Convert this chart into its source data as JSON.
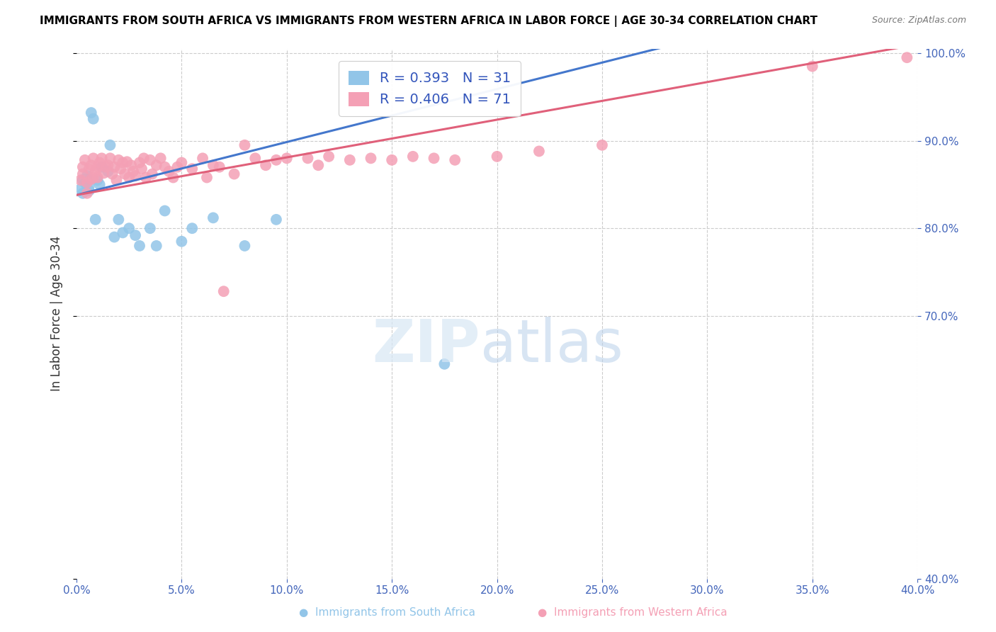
{
  "title": "IMMIGRANTS FROM SOUTH AFRICA VS IMMIGRANTS FROM WESTERN AFRICA IN LABOR FORCE | AGE 30-34 CORRELATION CHART",
  "source": "Source: ZipAtlas.com",
  "ylabel": "In Labor Force | Age 30-34",
  "xlim": [
    0.0,
    0.4
  ],
  "ylim": [
    0.4,
    1.005
  ],
  "xticks": [
    0.0,
    0.05,
    0.1,
    0.15,
    0.2,
    0.25,
    0.3,
    0.35,
    0.4
  ],
  "yticks_right": [
    0.4,
    0.7,
    0.8,
    0.9,
    1.0
  ],
  "color_south_africa": "#92c5e8",
  "color_western_africa": "#f4a0b5",
  "line_color_south_africa": "#4477cc",
  "line_color_western_africa": "#e0607a",
  "R_south_africa": 0.393,
  "N_south_africa": 31,
  "R_western_africa": 0.406,
  "N_western_africa": 71,
  "south_africa_x": [
    0.002,
    0.003,
    0.003,
    0.004,
    0.005,
    0.005,
    0.006,
    0.006,
    0.007,
    0.008,
    0.009,
    0.01,
    0.011,
    0.012,
    0.015,
    0.016,
    0.018,
    0.02,
    0.022,
    0.025,
    0.028,
    0.03,
    0.035,
    0.038,
    0.042,
    0.05,
    0.055,
    0.065,
    0.08,
    0.095,
    0.175
  ],
  "south_africa_y": [
    0.845,
    0.855,
    0.84,
    0.852,
    0.86,
    0.856,
    0.848,
    0.843,
    0.932,
    0.925,
    0.81,
    0.855,
    0.85,
    0.87,
    0.865,
    0.895,
    0.79,
    0.81,
    0.795,
    0.8,
    0.792,
    0.78,
    0.8,
    0.78,
    0.82,
    0.785,
    0.8,
    0.812,
    0.78,
    0.81,
    0.645
  ],
  "western_africa_x": [
    0.002,
    0.003,
    0.003,
    0.004,
    0.005,
    0.005,
    0.006,
    0.007,
    0.007,
    0.008,
    0.008,
    0.009,
    0.01,
    0.01,
    0.011,
    0.012,
    0.013,
    0.014,
    0.015,
    0.016,
    0.017,
    0.018,
    0.019,
    0.02,
    0.021,
    0.022,
    0.023,
    0.024,
    0.025,
    0.026,
    0.027,
    0.028,
    0.03,
    0.031,
    0.032,
    0.033,
    0.035,
    0.036,
    0.038,
    0.04,
    0.042,
    0.044,
    0.046,
    0.048,
    0.05,
    0.055,
    0.06,
    0.062,
    0.065,
    0.068,
    0.07,
    0.075,
    0.08,
    0.085,
    0.09,
    0.095,
    0.1,
    0.11,
    0.115,
    0.12,
    0.13,
    0.14,
    0.15,
    0.16,
    0.17,
    0.18,
    0.2,
    0.22,
    0.25,
    0.35,
    0.395
  ],
  "western_africa_y": [
    0.855,
    0.87,
    0.862,
    0.878,
    0.852,
    0.84,
    0.868,
    0.872,
    0.856,
    0.88,
    0.858,
    0.865,
    0.87,
    0.858,
    0.875,
    0.88,
    0.863,
    0.87,
    0.872,
    0.88,
    0.862,
    0.87,
    0.855,
    0.878,
    0.868,
    0.875,
    0.862,
    0.876,
    0.858,
    0.872,
    0.865,
    0.86,
    0.875,
    0.868,
    0.88,
    0.858,
    0.878,
    0.862,
    0.872,
    0.88,
    0.87,
    0.865,
    0.858,
    0.87,
    0.875,
    0.868,
    0.88,
    0.858,
    0.872,
    0.87,
    0.728,
    0.862,
    0.895,
    0.88,
    0.872,
    0.878,
    0.88,
    0.88,
    0.872,
    0.882,
    0.878,
    0.88,
    0.878,
    0.882,
    0.88,
    0.878,
    0.882,
    0.888,
    0.895,
    0.985,
    0.995
  ]
}
